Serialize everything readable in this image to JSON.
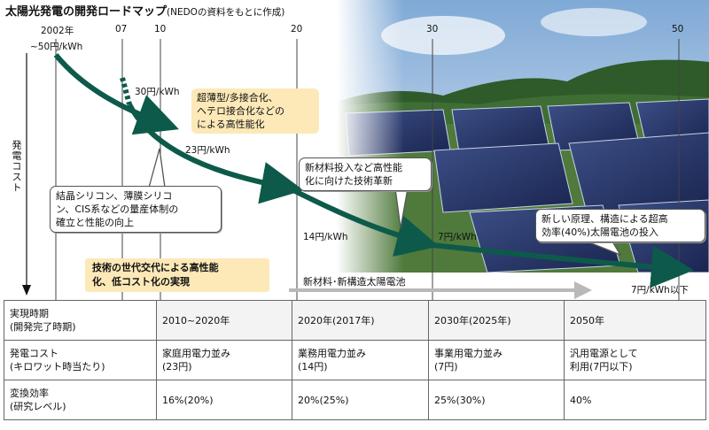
{
  "title": "太陽光発電の開発ロードマップ",
  "title_note": "(NEDOの資料をもとに作成)",
  "years": [
    "2002年",
    "07",
    "10",
    "20",
    "30",
    "50"
  ],
  "y_axis_label": "発電コスト",
  "cost_labels": {
    "c50": "~50円/kWh",
    "c30": "30円/kWh",
    "c23": "23円/kWh",
    "c14": "14円/kWh",
    "c7": "7円/kWh",
    "c7below": "7円/kWh以下"
  },
  "callouts": {
    "crystal": [
      "結晶シリコン、薄膜シリコ",
      "ン、CIS系などの量産体制の",
      "確立と性能の向上"
    ],
    "thin": [
      "超薄型/多接合化、",
      "ヘテロ接合化などの",
      "による高性能化"
    ],
    "newmaterial": [
      "新材料投入など高性能",
      "化に向けた技術革新"
    ],
    "newprinciple": [
      "新しい原理、構造による超高",
      "効率(40%)太陽電池の投入"
    ]
  },
  "bottom_box": [
    "技術の世代交代による高性能",
    "化、低コスト化の実現"
  ],
  "new_structure_label": "新材料･新構造太陽電池",
  "colors": {
    "curve": "#0d5a4a",
    "yellow": "#fde9b8",
    "gray_arrow": "#b9b9b9"
  },
  "table": {
    "rows": [
      {
        "header": [
          "実現時期",
          "(開発完了時期)"
        ],
        "cells": [
          [
            "2010~2020年"
          ],
          [
            "2020年(2017年)"
          ],
          [
            "2030年(2025年)"
          ],
          [
            "2050年"
          ]
        ]
      },
      {
        "header": [
          "発電コスト",
          "(キロワット時当たり)"
        ],
        "cells": [
          [
            "家庭用電力並み",
            "(23円)"
          ],
          [
            "業務用電力並み",
            "(14円)"
          ],
          [
            "事業用電力並み",
            "(7円)"
          ],
          [
            "汎用電源として",
            "利用(7円以下)"
          ]
        ]
      },
      {
        "header": [
          "変換効率",
          "(研究レベル)"
        ],
        "cells": [
          [
            "16%(20%)"
          ],
          [
            "20%(25%)"
          ],
          [
            "25%(30%)"
          ],
          [
            "40%"
          ]
        ]
      }
    ]
  }
}
